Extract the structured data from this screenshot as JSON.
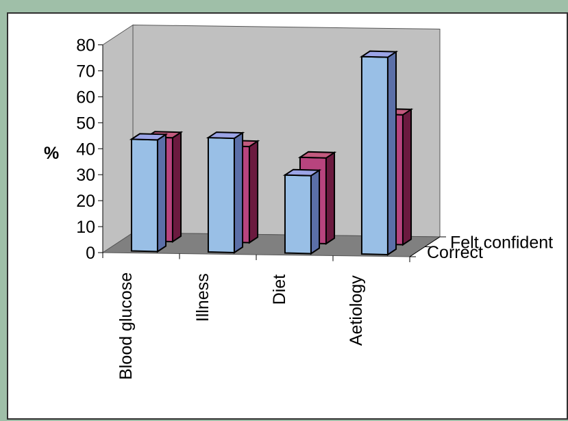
{
  "chart_data": {
    "type": "bar",
    "three_d": true,
    "categories": [
      "Blood glucose",
      "Illness",
      "Diet",
      "Aetiology"
    ],
    "series": [
      {
        "name": "Correct",
        "values": [
          43,
          44,
          30,
          76
        ],
        "color": "#99bfe6",
        "side_color": "#5b6fa8",
        "top_color": "#9ba4e6"
      },
      {
        "name": "Felt confident",
        "values": [
          40,
          37,
          33,
          50
        ],
        "color": "#b8447e",
        "side_color": "#6b1a3f",
        "top_color": "#c25a7e"
      }
    ],
    "ylabel": "%",
    "ylim": [
      0,
      80
    ],
    "yticks": [
      0,
      10,
      20,
      30,
      40,
      50,
      60,
      70,
      80
    ],
    "grid": false,
    "wall_color": "#c0c0c0",
    "floor_color": "#808080"
  }
}
